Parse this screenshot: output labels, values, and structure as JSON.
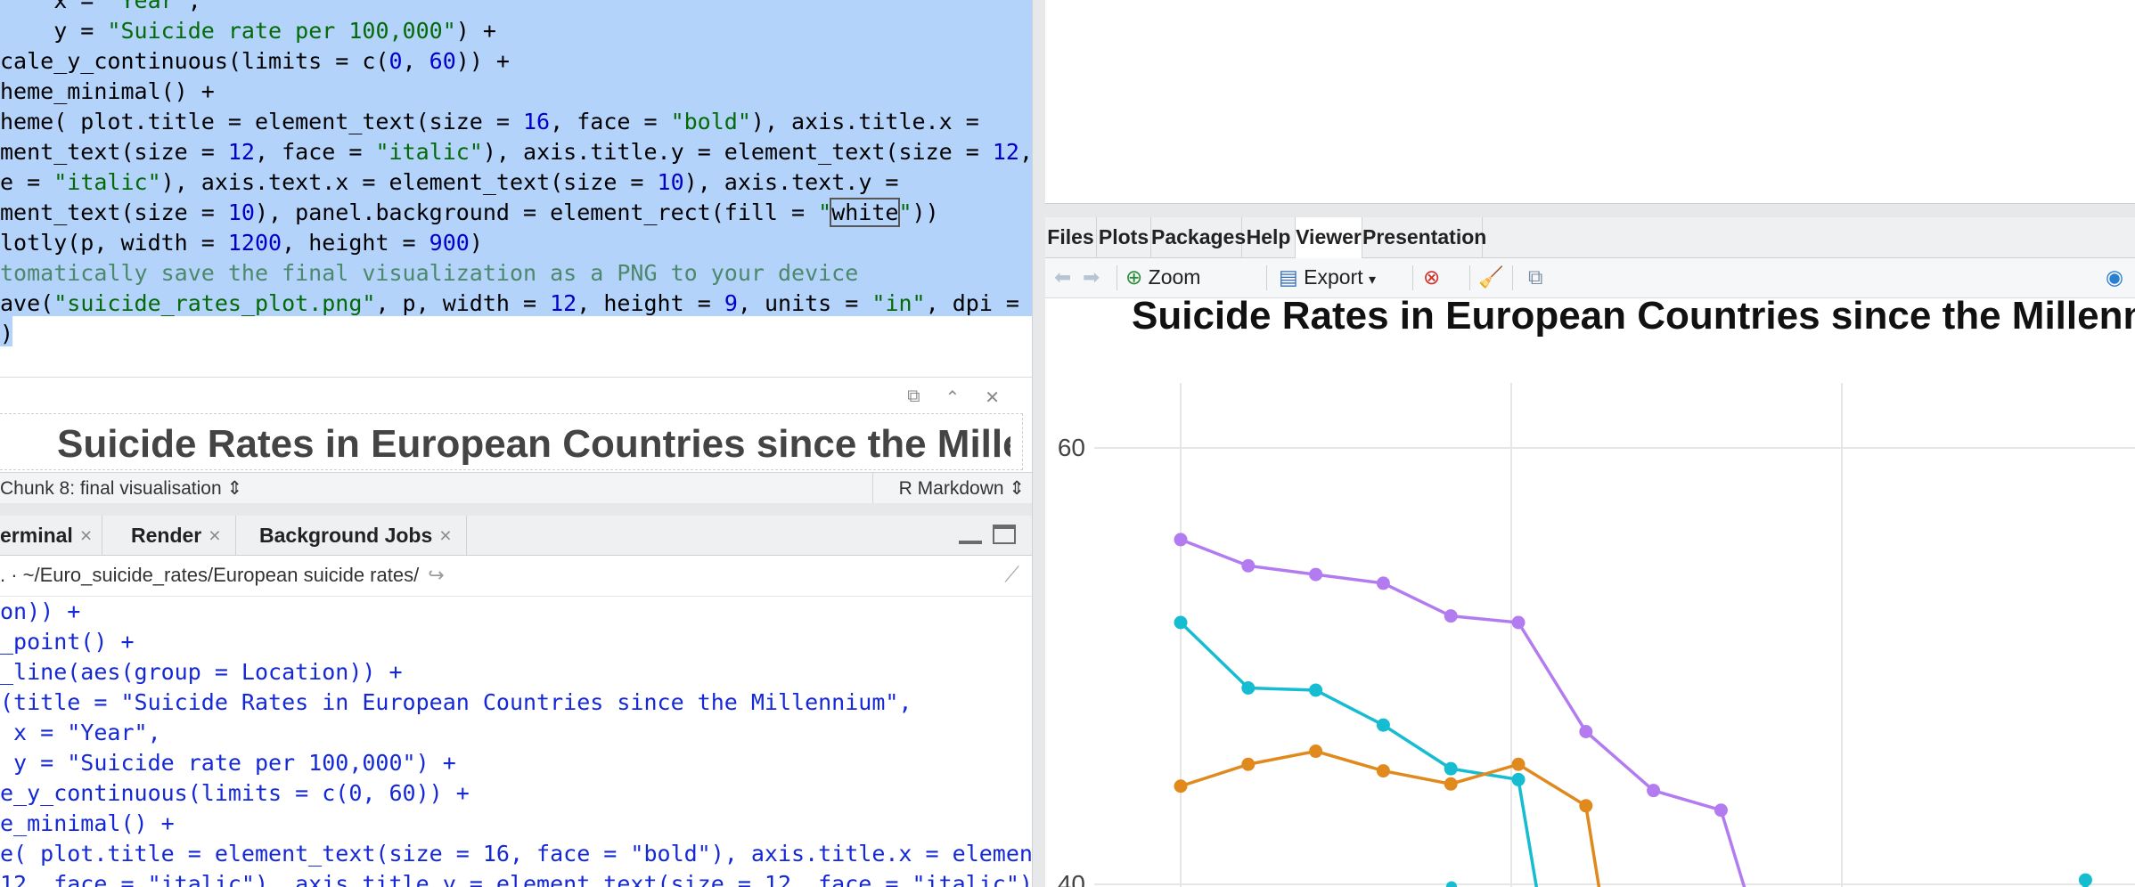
{
  "editor": {
    "lines": [
      [
        [
          "    x = ",
          ""
        ],
        [
          "\"Year\"",
          "str"
        ],
        [
          ",",
          ""
        ]
      ],
      [
        [
          "    y = ",
          ""
        ],
        [
          "\"Suicide rate per 100,000\"",
          "str"
        ],
        [
          ") +",
          ""
        ]
      ],
      [
        [
          "cale_y_continuous(limits = c(",
          ""
        ],
        [
          "0",
          "num"
        ],
        [
          ", ",
          ""
        ],
        [
          "60",
          "num"
        ],
        [
          ")) +",
          ""
        ]
      ],
      [
        [
          "heme_minimal() +",
          ""
        ]
      ],
      [
        [
          "heme( plot.title = element_text(size = ",
          ""
        ],
        [
          "16",
          "num"
        ],
        [
          ", face = ",
          ""
        ],
        [
          "\"bold\"",
          "str"
        ],
        [
          "), axis.title.x =",
          ""
        ]
      ],
      [
        [
          "ment_text(size = ",
          ""
        ],
        [
          "12",
          "num"
        ],
        [
          ", face = ",
          ""
        ],
        [
          "\"italic\"",
          "str"
        ],
        [
          "), axis.title.y = element_text(size = ",
          ""
        ],
        [
          "12",
          "num"
        ],
        [
          ",",
          ""
        ]
      ],
      [
        [
          "e = ",
          ""
        ],
        [
          "\"italic\"",
          "str"
        ],
        [
          "), axis.text.x = element_text(size = ",
          ""
        ],
        [
          "10",
          "num"
        ],
        [
          "), axis.text.y =",
          ""
        ]
      ],
      [
        [
          "ment_text(size = ",
          ""
        ],
        [
          "10",
          "num"
        ],
        [
          "), panel.background = element_rect(fill = ",
          ""
        ],
        [
          "\"",
          "str"
        ],
        [
          "white",
          "box"
        ],
        [
          "\"",
          "str"
        ],
        [
          "))",
          ""
        ]
      ],
      [
        [
          "lotly(p, width = ",
          ""
        ],
        [
          "1200",
          "num"
        ],
        [
          ", height = ",
          ""
        ],
        [
          "900",
          "num"
        ],
        [
          ")",
          ""
        ]
      ],
      [
        [
          "tomatically save the final visualization as a PNG to your device",
          "cmt"
        ]
      ],
      [
        [
          "ave(",
          ""
        ],
        [
          "\"suicide_rates_plot.png\"",
          "str"
        ],
        [
          ", p, width = ",
          ""
        ],
        [
          "12",
          "num"
        ],
        [
          ", height = ",
          ""
        ],
        [
          "9",
          "num"
        ],
        [
          ", units = ",
          ""
        ],
        [
          "\"in\"",
          "str"
        ],
        [
          ", dpi =",
          ""
        ]
      ],
      [
        [
          ")",
          ""
        ]
      ]
    ]
  },
  "chunk_output": {
    "preview_title": "Suicide Rates in European Countries since the Millennium"
  },
  "statusbar": {
    "chunk_label": "Chunk 8: final visualisation",
    "language": "R Markdown"
  },
  "console_tabs": [
    "erminal",
    "Render",
    "Background Jobs"
  ],
  "console": {
    "path": ". · ~/Euro_suicide_rates/European suicide rates/",
    "lines": [
      "on)) +",
      "_point() +",
      "_line(aes(group = Location)) +",
      "(title = \"Suicide Rates in European Countries since the Millennium\",",
      " x = \"Year\",",
      " y = \"Suicide rate per 100,000\") +",
      "e_y_continuous(limits = c(0, 60)) +",
      "e_minimal() +",
      "e( plot.title = element_text(size = 16, face = \"bold\"), axis.title.x = element_t",
      "12, face = \"italic\"), axis.title.y = element_text(size = 12, face = \"italic\"),"
    ]
  },
  "right_tabs": [
    "Files",
    "Plots",
    "Packages",
    "Help",
    "Viewer",
    "Presentation"
  ],
  "active_right_tab": "Viewer",
  "viewer_toolbar": {
    "zoom_label": "Zoom",
    "export_label": "Export"
  },
  "colors": {
    "selection": "#b3d3fb",
    "series_purple": "#b27cf0",
    "series_teal": "#16bcd0",
    "series_orange": "#e08a1e"
  },
  "chart_data": {
    "type": "line",
    "title": "Suicide Rates in European Countries since the Millennium",
    "ylim": [
      40,
      60
    ],
    "yticks": [
      40,
      60
    ],
    "grid": true,
    "series": [
      {
        "color": "#b27cf0",
        "values": [
          55.8,
          54.6,
          54.2,
          53.8,
          52.3,
          52.0,
          47.0,
          44.3,
          43.4
        ]
      },
      {
        "color": "#16bcd0",
        "values": [
          52.0,
          49.0,
          48.9,
          47.3,
          45.3,
          44.8
        ]
      },
      {
        "color": "#e08a1e",
        "values": [
          44.5,
          45.5,
          46.1,
          45.2,
          44.6,
          45.5,
          43.6
        ]
      }
    ],
    "extra_points": [
      {
        "series": 1,
        "index": 13,
        "value": 40.2
      }
    ]
  }
}
